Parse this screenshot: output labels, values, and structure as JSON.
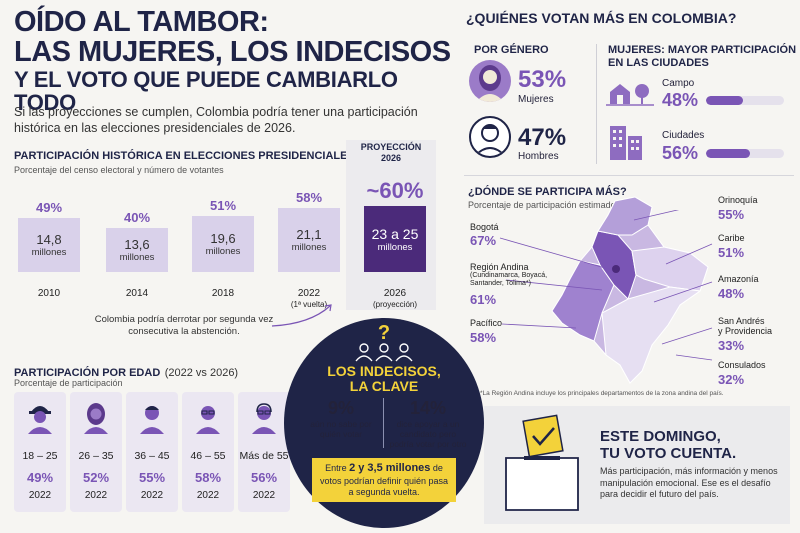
{
  "header": {
    "line1": "OÍDO AL TAMBOR:",
    "line2": "LAS MUJERES, LOS INDECISOS",
    "line3": "Y EL VOTO QUE PUEDE CAMBIARLO TODO",
    "intro": "Si las proyecciones se cumplen, Colombia podría tener una participación histórica en las elecciones presidenciales de 2026."
  },
  "historic": {
    "title": "PARTICIPACIÓN HISTÓRICA EN ELECCIONES PRESIDENCIALES",
    "subtitle": "Porcentaje del censo electoral y número de votantes",
    "millones": "millones",
    "bars": [
      {
        "year": "2010",
        "pct": "49%",
        "voters": "14,8",
        "value": 49
      },
      {
        "year": "2014",
        "pct": "40%",
        "voters": "13,6",
        "value": 40
      },
      {
        "year": "2018",
        "pct": "51%",
        "voters": "19,6",
        "value": 51
      },
      {
        "year": "2022",
        "pct": "58%",
        "voters": "21,1",
        "value": 58,
        "note": "(1ª vuelta)"
      }
    ],
    "projection": {
      "label_line1": "PROYECCIÓN",
      "label_line2": "2026",
      "pct": "~60%",
      "voters": "23 a 25",
      "year": "2026",
      "note": "(proyección)",
      "value": 60
    },
    "annotation": "Colombia podría derrotar por segunda vez consecutiva la abstención."
  },
  "age": {
    "title": "PARTICIPACIÓN POR EDAD",
    "title_extra": "(2022 vs 2026)",
    "subtitle": "Porcentaje de participación",
    "groups": [
      {
        "range": "18 – 25",
        "pct": "49%",
        "year": "2022"
      },
      {
        "range": "26 – 35",
        "pct": "52%",
        "year": "2022"
      },
      {
        "range": "36 – 45",
        "pct": "55%",
        "year": "2022"
      },
      {
        "range": "46 – 55",
        "pct": "58%",
        "year": "2022"
      },
      {
        "range": "Más de 55",
        "pct": "56%",
        "year": "2022"
      }
    ]
  },
  "undecided": {
    "qmark": "?",
    "title1": "LOS INDECISOS,",
    "title2": "LA CLAVE",
    "stat1_pct": "9%",
    "stat1_text": "aún no sabe por quién votar",
    "stat2_pct": "14%",
    "stat2_text": "dice apoyar a un candidato pero podría votar por otro",
    "box_pre": "Entre ",
    "box_strong": "2 y 3,5 millones",
    "box_post": " de votos podrían definir quién pasa a segunda vuelta."
  },
  "who": {
    "title": "¿QUIÉNES VOTAN MÁS EN COLOMBIA?",
    "gender_title": "POR GÉNERO",
    "women_pct": "53%",
    "women_label": "Mujeres",
    "men_pct": "47%",
    "men_label": "Hombres",
    "cities_title_1": "MUJERES: MAYOR PARTICIPACIÓN",
    "cities_title_2": "EN LAS CIUDADES",
    "rural_label": "Campo",
    "rural_pct": "48%",
    "rural_value": 0.48,
    "urban_label": "Ciudades",
    "urban_pct": "56%",
    "urban_value": 0.56
  },
  "where": {
    "title": "¿DÓNDE SE PARTICIPA MÁS?",
    "subtitle": "Porcentaje de participación estimado",
    "bogota": "Bogotá",
    "bogota_pct": "67%",
    "andina": "Región Andina",
    "andina_sub": "(Cundinamarca, Boyacá, Santander, Tolima*)",
    "andina_pct": "61%",
    "pacifico": "Pacífico",
    "pacifico_pct": "58%",
    "orinoquia": "Orinoquía",
    "orinoquia_pct": "55%",
    "caribe": "Caribe",
    "caribe_pct": "51%",
    "amazonia": "Amazonía",
    "amazonia_pct": "48%",
    "sanandres1": "San Andrés",
    "sanandres2": "y Providencia",
    "sanandres_pct": "33%",
    "consulados": "Consulados",
    "consulados_pct": "32%",
    "footnote": "*La Región Andina incluye los principales departamentos de la zona andina del país."
  },
  "cta": {
    "title1": "ESTE DOMINGO,",
    "title2": "TU VOTO CUENTA.",
    "text": "Más participación, más información y menos manipulación emocional. Ese es el desafío para decidir el futuro del país."
  },
  "colors": {
    "navy": "#1f2447",
    "purple": "#7a55b5",
    "light_purple": "#d9d1ea",
    "dark_purple": "#4b2a7a",
    "yellow": "#f3d23a"
  }
}
